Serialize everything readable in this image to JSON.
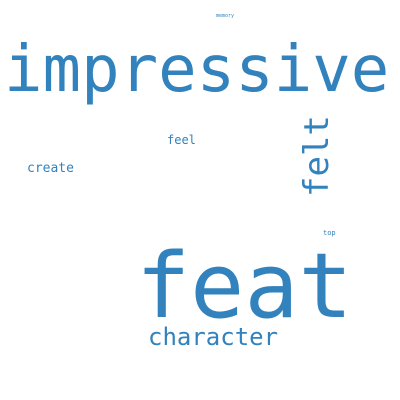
{
  "word_cloud": {
    "color": "#3182bd",
    "words": [
      {
        "key": "impressive",
        "text": "impressive",
        "weight": 1.0
      },
      {
        "key": "feat",
        "text": "feat",
        "weight": 1.0
      },
      {
        "key": "character",
        "text": "character",
        "weight": 0.35
      },
      {
        "key": "felt",
        "text": "felt",
        "weight": 0.45,
        "orientation": "vertical"
      },
      {
        "key": "feel",
        "text": "feel",
        "weight": 0.15
      },
      {
        "key": "create",
        "text": "create",
        "weight": 0.17
      },
      {
        "key": "top",
        "text": "top",
        "weight": 0.08
      },
      {
        "key": "memory",
        "text": "memory",
        "weight": 0.05
      }
    ]
  }
}
